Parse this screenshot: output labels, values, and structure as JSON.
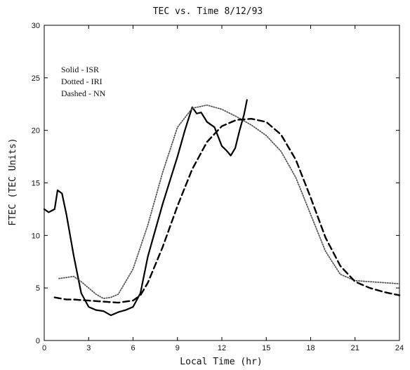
{
  "chart_data": {
    "type": "line",
    "title": "TEC vs. Time 8/12/93",
    "xlabel": "Local Time (hr)",
    "ylabel": "FTEC (TEC Units)",
    "xlim": [
      0,
      24
    ],
    "ylim": [
      0,
      30
    ],
    "xticks": [
      0,
      3,
      6,
      9,
      12,
      15,
      18,
      21,
      24
    ],
    "yticks": [
      0,
      5,
      10,
      15,
      20,
      25,
      30
    ],
    "grid": false,
    "legend_position": "top-left",
    "legend_entries": [
      "Solid - ISR",
      "Dotted - IRI",
      "Dashed - NN"
    ],
    "series": [
      {
        "name": "ISR",
        "style": "solid",
        "color": "#000000",
        "x": [
          0,
          0.3,
          0.7,
          0.9,
          1.2,
          1.5,
          2.0,
          2.5,
          3.0,
          3.5,
          4.0,
          4.5,
          5.0,
          5.5,
          6.0,
          6.5,
          7.0,
          8.0,
          9.0,
          9.5,
          10.0,
          10.3,
          10.6,
          11.0,
          11.5,
          12.0,
          12.3,
          12.6,
          12.9,
          13.2,
          13.5,
          13.7
        ],
        "y": [
          12.5,
          12.2,
          12.5,
          14.3,
          14.0,
          12.0,
          8.0,
          4.5,
          3.2,
          2.9,
          2.8,
          2.4,
          2.7,
          2.9,
          3.2,
          4.5,
          8.0,
          13.0,
          17.5,
          20.0,
          22.2,
          21.6,
          21.7,
          20.8,
          20.3,
          18.5,
          18.1,
          17.6,
          18.3,
          20.0,
          21.5,
          22.9
        ]
      },
      {
        "name": "IRI",
        "style": "dotted",
        "color": "#555555",
        "x": [
          1.0,
          2.0,
          2.5,
          3.0,
          3.5,
          4.0,
          4.5,
          5.0,
          6.0,
          7.0,
          8.0,
          9.0,
          10.0,
          11.0,
          12.0,
          13.0,
          14.0,
          15.0,
          16.0,
          17.0,
          18.0,
          19.0,
          20.0,
          21.0,
          22.0,
          23.0,
          24.0
        ],
        "y": [
          5.9,
          6.1,
          5.6,
          5.0,
          4.4,
          4.0,
          4.1,
          4.4,
          6.8,
          11.0,
          16.0,
          20.3,
          22.1,
          22.4,
          22.0,
          21.3,
          20.5,
          19.5,
          18.0,
          15.5,
          12.0,
          8.5,
          6.3,
          5.7,
          5.6,
          5.5,
          5.4
        ]
      },
      {
        "name": "NN",
        "style": "dashed",
        "color": "#000000",
        "x": [
          0.7,
          1.5,
          2.0,
          3.0,
          4.0,
          5.0,
          6.0,
          6.5,
          7.0,
          8.0,
          9.0,
          10.0,
          11.0,
          12.0,
          13.0,
          14.0,
          15.0,
          16.0,
          17.0,
          18.0,
          19.0,
          20.0,
          21.0,
          22.0,
          23.0,
          24.0
        ],
        "y": [
          4.1,
          3.9,
          3.9,
          3.8,
          3.7,
          3.6,
          3.8,
          4.3,
          5.5,
          8.9,
          12.8,
          16.3,
          18.9,
          20.4,
          21.0,
          21.1,
          20.8,
          19.6,
          17.2,
          13.6,
          9.8,
          7.1,
          5.6,
          5.0,
          4.6,
          4.3
        ]
      }
    ]
  }
}
